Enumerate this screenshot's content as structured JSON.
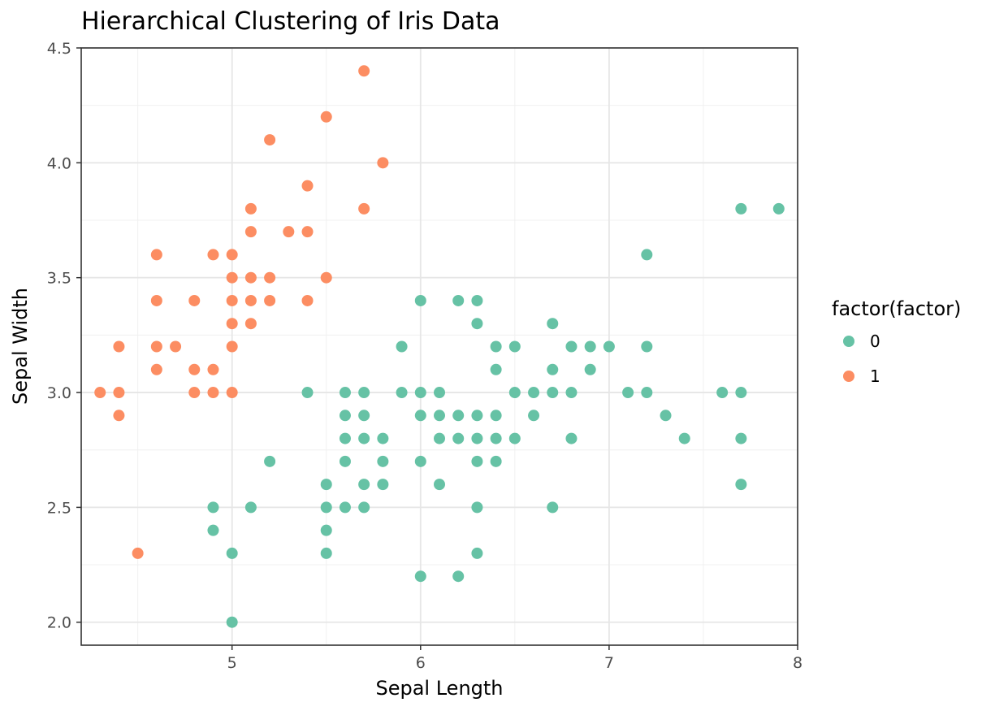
{
  "chart_data": {
    "type": "scatter",
    "title": "Hierarchical Clustering of Iris Data",
    "xlabel": "Sepal Length",
    "ylabel": "Sepal Width",
    "xlim": [
      4.2,
      8.0
    ],
    "ylim": [
      1.9,
      4.5
    ],
    "xticks": [
      "5",
      "6",
      "7",
      "8"
    ],
    "yticks": [
      "2.0",
      "2.5",
      "3.0",
      "3.5",
      "4.0",
      "4.5"
    ],
    "grid": true,
    "legend": {
      "title": "factor(factor)",
      "position": "right",
      "entries": [
        "0",
        "1"
      ]
    },
    "series": [
      {
        "name": "0",
        "color": "#66c2a5",
        "points": [
          [
            7.9,
            3.8
          ],
          [
            7.7,
            3.8
          ],
          [
            7.2,
            3.6
          ],
          [
            6.0,
            3.4
          ],
          [
            6.2,
            3.4
          ],
          [
            6.3,
            3.4
          ],
          [
            6.3,
            3.3
          ],
          [
            6.7,
            3.3
          ],
          [
            5.9,
            3.2
          ],
          [
            6.4,
            3.2
          ],
          [
            6.5,
            3.2
          ],
          [
            6.8,
            3.2
          ],
          [
            6.9,
            3.2
          ],
          [
            7.0,
            3.2
          ],
          [
            7.2,
            3.2
          ],
          [
            6.4,
            3.1
          ],
          [
            6.7,
            3.1
          ],
          [
            6.9,
            3.1
          ],
          [
            5.4,
            3.0
          ],
          [
            5.6,
            3.0
          ],
          [
            5.7,
            3.0
          ],
          [
            5.9,
            3.0
          ],
          [
            6.0,
            3.0
          ],
          [
            6.1,
            3.0
          ],
          [
            6.5,
            3.0
          ],
          [
            6.6,
            3.0
          ],
          [
            6.7,
            3.0
          ],
          [
            6.8,
            3.0
          ],
          [
            7.1,
            3.0
          ],
          [
            7.2,
            3.0
          ],
          [
            7.6,
            3.0
          ],
          [
            7.7,
            3.0
          ],
          [
            5.6,
            2.9
          ],
          [
            5.7,
            2.9
          ],
          [
            6.0,
            2.9
          ],
          [
            6.1,
            2.9
          ],
          [
            6.2,
            2.9
          ],
          [
            6.3,
            2.9
          ],
          [
            6.4,
            2.9
          ],
          [
            6.6,
            2.9
          ],
          [
            7.3,
            2.9
          ],
          [
            5.6,
            2.8
          ],
          [
            5.7,
            2.8
          ],
          [
            5.8,
            2.8
          ],
          [
            6.1,
            2.8
          ],
          [
            6.2,
            2.8
          ],
          [
            6.3,
            2.8
          ],
          [
            6.4,
            2.8
          ],
          [
            6.5,
            2.8
          ],
          [
            6.8,
            2.8
          ],
          [
            7.4,
            2.8
          ],
          [
            7.7,
            2.8
          ],
          [
            5.2,
            2.7
          ],
          [
            5.6,
            2.7
          ],
          [
            5.8,
            2.7
          ],
          [
            6.0,
            2.7
          ],
          [
            6.3,
            2.7
          ],
          [
            6.4,
            2.7
          ],
          [
            5.5,
            2.6
          ],
          [
            5.7,
            2.6
          ],
          [
            5.8,
            2.6
          ],
          [
            6.1,
            2.6
          ],
          [
            7.7,
            2.6
          ],
          [
            4.9,
            2.5
          ],
          [
            5.1,
            2.5
          ],
          [
            5.5,
            2.5
          ],
          [
            5.6,
            2.5
          ],
          [
            5.7,
            2.5
          ],
          [
            6.3,
            2.5
          ],
          [
            6.7,
            2.5
          ],
          [
            4.9,
            2.4
          ],
          [
            5.5,
            2.4
          ],
          [
            5.0,
            2.3
          ],
          [
            5.5,
            2.3
          ],
          [
            6.3,
            2.3
          ],
          [
            6.0,
            2.2
          ],
          [
            6.2,
            2.2
          ],
          [
            5.0,
            2.0
          ]
        ]
      },
      {
        "name": "1",
        "color": "#fc8d62",
        "points": [
          [
            5.7,
            4.4
          ],
          [
            5.5,
            4.2
          ],
          [
            5.2,
            4.1
          ],
          [
            5.8,
            4.0
          ],
          [
            5.4,
            3.9
          ],
          [
            5.1,
            3.8
          ],
          [
            5.7,
            3.8
          ],
          [
            5.1,
            3.7
          ],
          [
            5.3,
            3.7
          ],
          [
            5.4,
            3.7
          ],
          [
            4.6,
            3.6
          ],
          [
            4.9,
            3.6
          ],
          [
            5.0,
            3.6
          ],
          [
            5.0,
            3.5
          ],
          [
            5.1,
            3.5
          ],
          [
            5.2,
            3.5
          ],
          [
            5.5,
            3.5
          ],
          [
            4.6,
            3.4
          ],
          [
            4.8,
            3.4
          ],
          [
            5.0,
            3.4
          ],
          [
            5.1,
            3.4
          ],
          [
            5.2,
            3.4
          ],
          [
            5.4,
            3.4
          ],
          [
            5.0,
            3.3
          ],
          [
            5.1,
            3.3
          ],
          [
            4.4,
            3.2
          ],
          [
            4.6,
            3.2
          ],
          [
            4.7,
            3.2
          ],
          [
            5.0,
            3.2
          ],
          [
            4.6,
            3.1
          ],
          [
            4.8,
            3.1
          ],
          [
            4.9,
            3.1
          ],
          [
            4.3,
            3.0
          ],
          [
            4.4,
            3.0
          ],
          [
            4.8,
            3.0
          ],
          [
            4.9,
            3.0
          ],
          [
            5.0,
            3.0
          ],
          [
            4.4,
            2.9
          ],
          [
            4.5,
            2.3
          ]
        ]
      }
    ]
  }
}
